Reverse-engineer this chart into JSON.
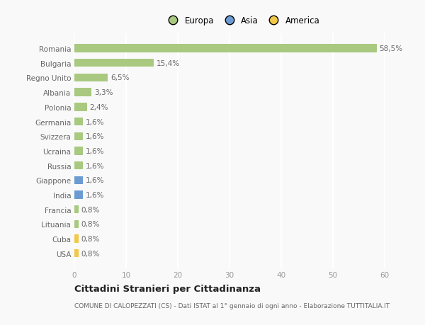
{
  "categories": [
    "USA",
    "Cuba",
    "Lituania",
    "Francia",
    "India",
    "Giappone",
    "Russia",
    "Ucraina",
    "Svizzera",
    "Germania",
    "Polonia",
    "Albania",
    "Regno Unito",
    "Bulgaria",
    "Romania"
  ],
  "values": [
    0.8,
    0.8,
    0.8,
    0.8,
    1.6,
    1.6,
    1.6,
    1.6,
    1.6,
    1.6,
    2.4,
    3.3,
    6.5,
    15.4,
    58.5
  ],
  "labels": [
    "0,8%",
    "0,8%",
    "0,8%",
    "0,8%",
    "1,6%",
    "1,6%",
    "1,6%",
    "1,6%",
    "1,6%",
    "1,6%",
    "2,4%",
    "3,3%",
    "6,5%",
    "15,4%",
    "58,5%"
  ],
  "continent": [
    "America",
    "America",
    "Europa",
    "Europa",
    "Asia",
    "Asia",
    "Europa",
    "Europa",
    "Europa",
    "Europa",
    "Europa",
    "Europa",
    "Europa",
    "Europa",
    "Europa"
  ],
  "colors": {
    "Europa": "#a8c97f",
    "Asia": "#6b9bd2",
    "America": "#f0c84a"
  },
  "legend": [
    {
      "label": "Europa",
      "color": "#a8c97f"
    },
    {
      "label": "Asia",
      "color": "#6b9bd2"
    },
    {
      "label": "America",
      "color": "#f0c84a"
    }
  ],
  "xlim": [
    0,
    65
  ],
  "xticks": [
    0,
    10,
    20,
    30,
    40,
    50,
    60
  ],
  "title_main": "Cittadini Stranieri per Cittadinanza",
  "title_sub": "COMUNE DI CALOPEZZATI (CS) - Dati ISTAT al 1° gennaio di ogni anno - Elaborazione TUTTITALIA.IT",
  "background_color": "#f9f9f9",
  "grid_color": "#ffffff",
  "bar_height": 0.55,
  "label_fontsize": 7.5,
  "tick_fontsize": 7.5,
  "title_fontsize": 9.5,
  "subtitle_fontsize": 6.5
}
